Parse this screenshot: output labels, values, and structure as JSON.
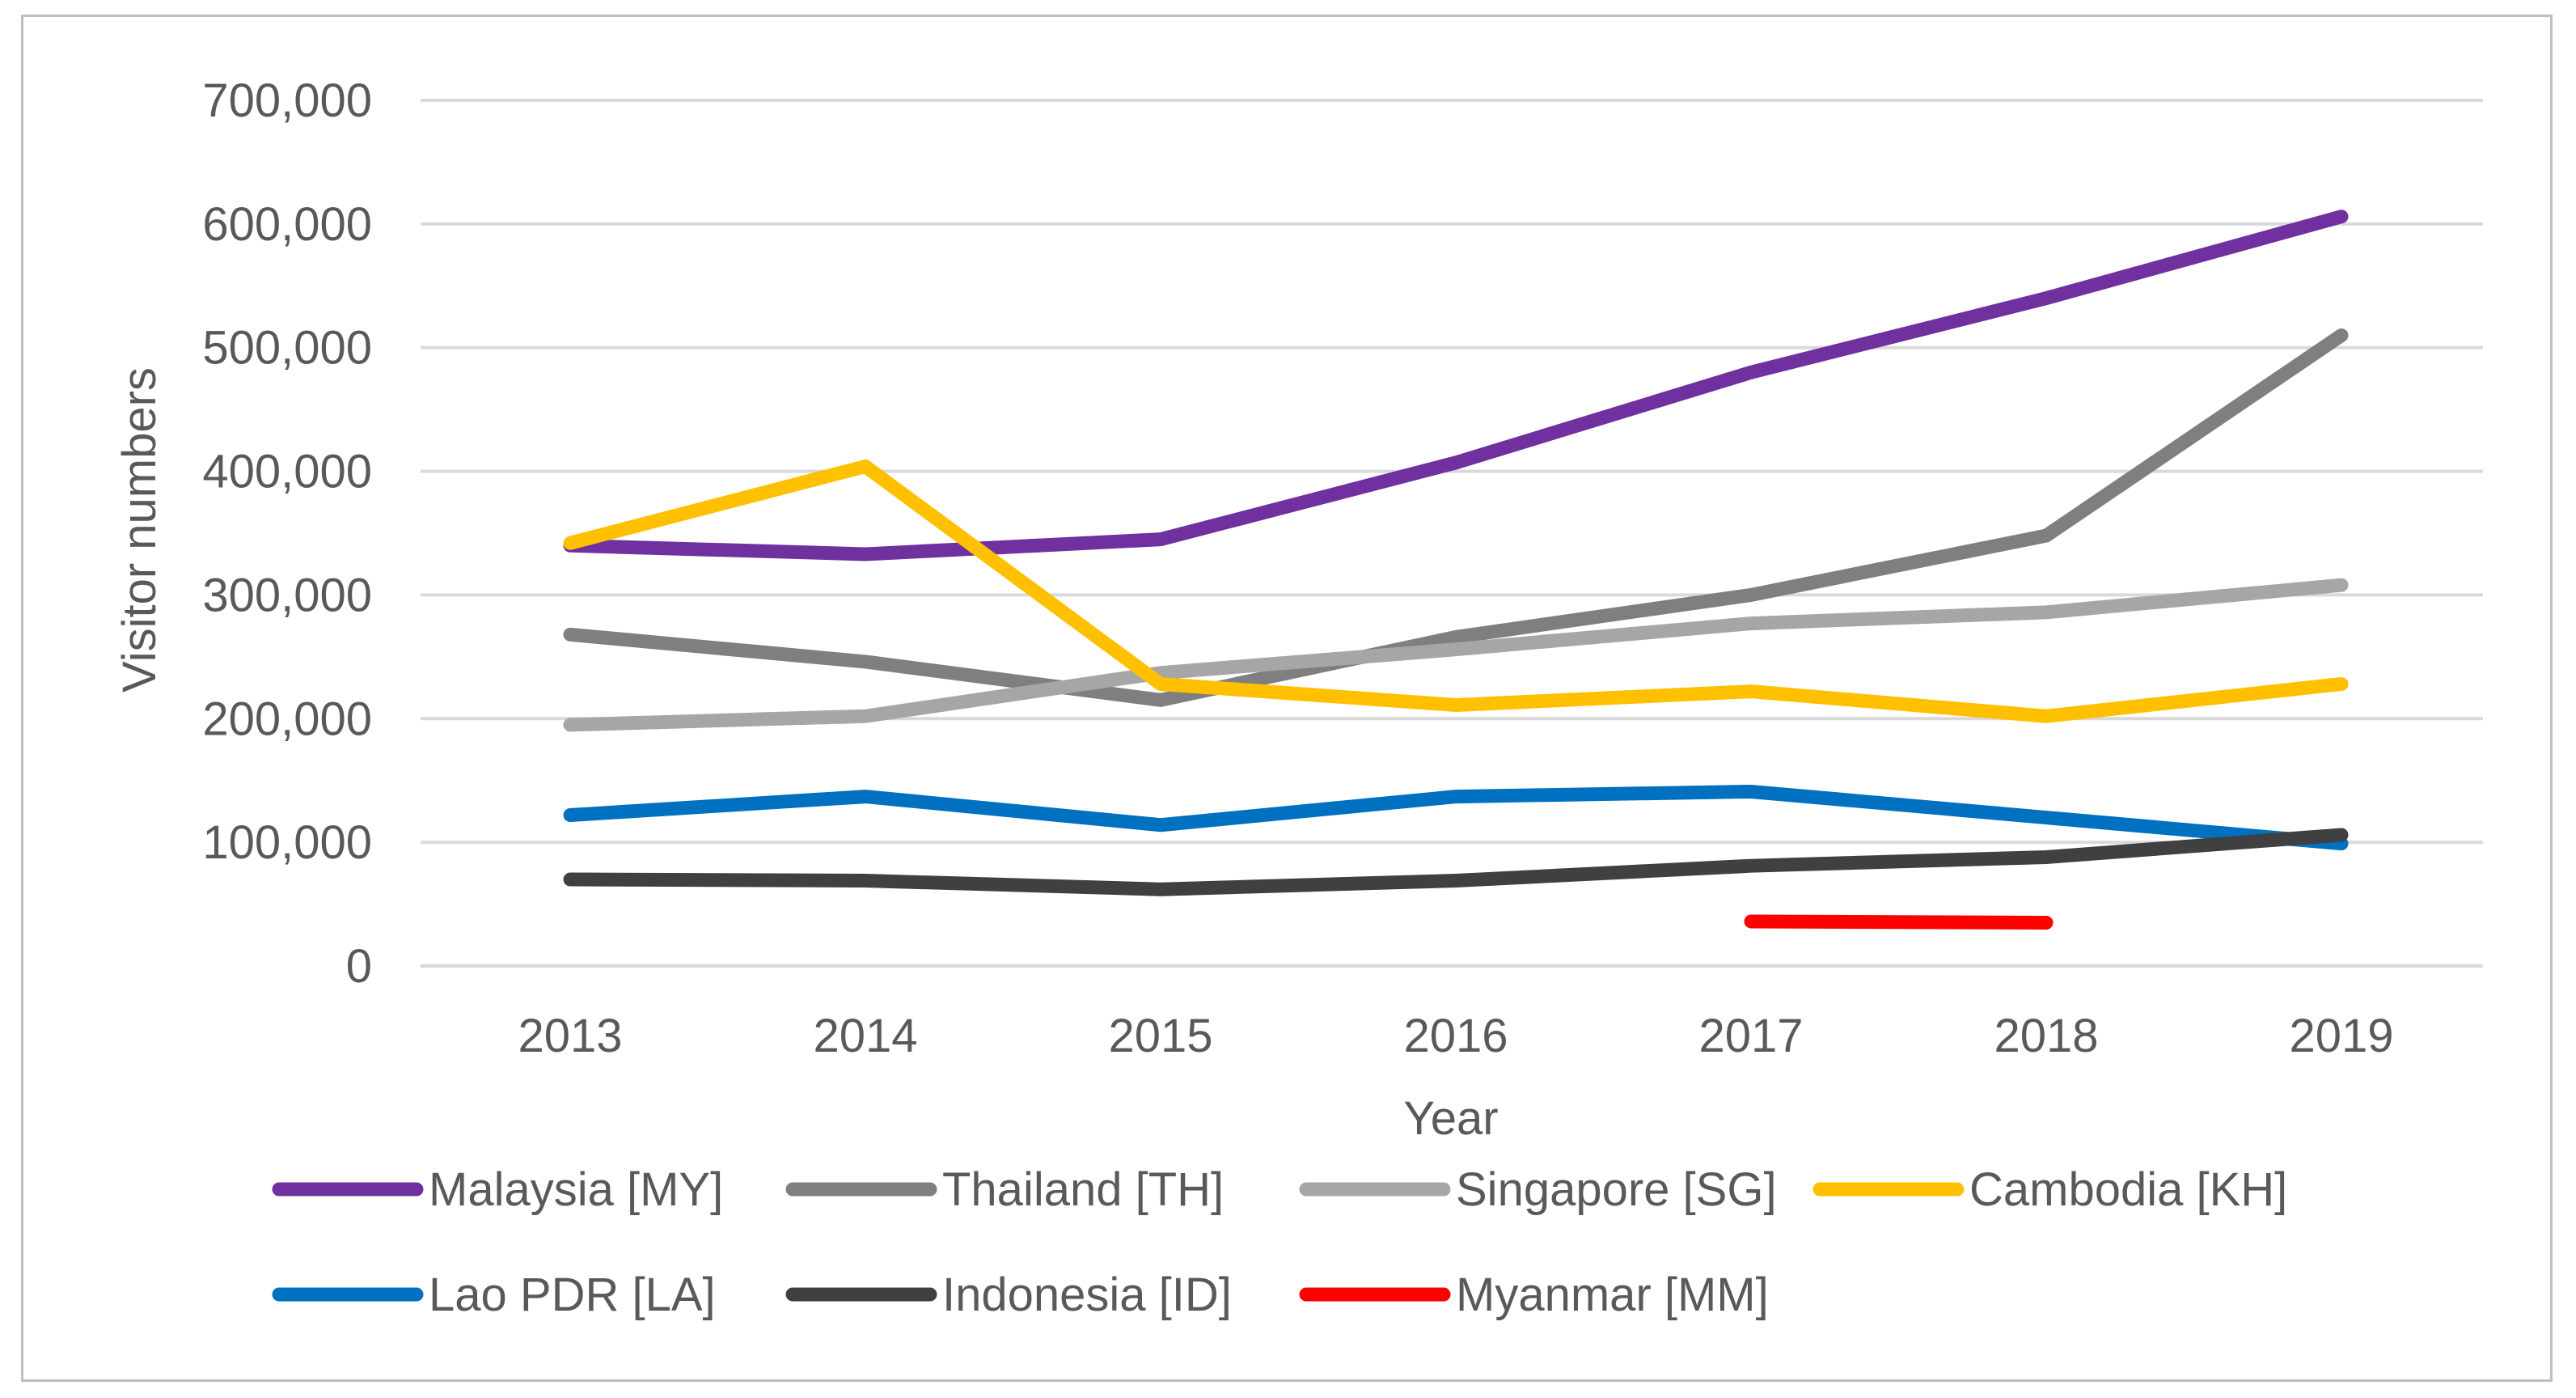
{
  "chart_data": {
    "type": "line",
    "xlabel": "Year",
    "ylabel": "Visitor numbers",
    "categories": [
      "2013",
      "2014",
      "2015",
      "2016",
      "2017",
      "2018",
      "2019"
    ],
    "ylim": [
      0,
      700000
    ],
    "yticks": [
      0,
      100000,
      200000,
      300000,
      400000,
      500000,
      600000,
      700000
    ],
    "ytick_labels": [
      "0",
      "100,000",
      "200,000",
      "300,000",
      "400,000",
      "500,000",
      "600,000",
      "700,000"
    ],
    "grid": true,
    "legend_position": "bottom",
    "series": [
      {
        "name": "Malaysia [MY]",
        "color": "#7030a0",
        "values": [
          340000,
          333000,
          345000,
          407000,
          480000,
          540000,
          606000
        ]
      },
      {
        "name": "Thailand [TH]",
        "color": "#7f7f7f",
        "values": [
          268000,
          246000,
          215000,
          266000,
          300000,
          348000,
          510000
        ]
      },
      {
        "name": "Singapore [SG]",
        "color": "#a6a6a6",
        "values": [
          195000,
          202000,
          237000,
          256000,
          277000,
          286000,
          308000
        ]
      },
      {
        "name": "Cambodia [KH]",
        "color": "#ffc000",
        "values": [
          342000,
          404000,
          228000,
          211000,
          222000,
          202000,
          228000
        ]
      },
      {
        "name": "Lao PDR [LA]",
        "color": "#0070c0",
        "values": [
          122000,
          137000,
          114000,
          137000,
          141000,
          120000,
          99000
        ]
      },
      {
        "name": "Indonesia [ID]",
        "color": "#404040",
        "values": [
          70000,
          69000,
          62000,
          69000,
          81000,
          88000,
          106000
        ]
      },
      {
        "name": "Myanmar [MM]",
        "color": "#ff0000",
        "values": [
          null,
          null,
          null,
          null,
          36000,
          35000,
          null
        ]
      }
    ]
  }
}
